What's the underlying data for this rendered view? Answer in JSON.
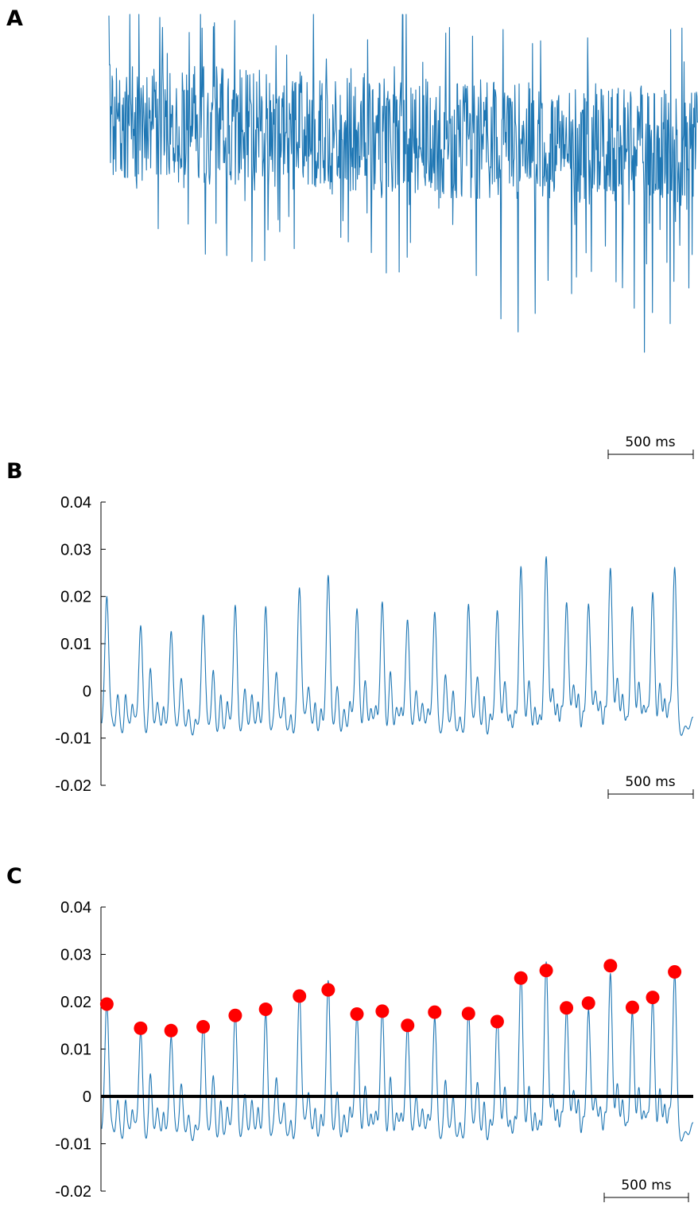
{
  "colors": {
    "trace": "#1f77b4",
    "peak_marker": "#ff0000",
    "zero_line": "#000000"
  },
  "chart_data": [
    {
      "type": "line",
      "panel_label": "A",
      "title": "",
      "xlabel": "",
      "ylabel": "",
      "x_unit": "ms",
      "duration_ms": 3500,
      "yaxis_visible": false,
      "scale_bar": {
        "length_ms": 500,
        "label": "500 ms"
      },
      "description_series": "raw noisy oscillatory signal, unscaled"
    },
    {
      "type": "line",
      "panel_label": "B",
      "title": "",
      "xlabel": "",
      "ylabel": "",
      "x_unit": "ms",
      "duration_ms": 3500,
      "ylim": [
        -0.02,
        0.04
      ],
      "yticks": [
        -0.02,
        -0.01,
        0,
        0.01,
        0.02,
        0.03,
        0.04
      ],
      "ytick_labels": [
        "-0.02",
        "-0.01",
        "0",
        "0.01",
        "0.02",
        "0.03",
        "0.04"
      ],
      "scale_bar": {
        "length_ms": 500,
        "label": "500 ms"
      },
      "peak_times_ms": [
        30,
        230,
        410,
        600,
        790,
        970,
        1170,
        1340,
        1510,
        1660,
        1810,
        1970,
        2170,
        2340,
        2480,
        2630,
        2750,
        2880,
        3010,
        3140,
        3260,
        3390
      ],
      "peak_values": [
        0.0195,
        0.0144,
        0.0139,
        0.0147,
        0.0171,
        0.0184,
        0.0212,
        0.0225,
        0.0174,
        0.018,
        0.015,
        0.0178,
        0.0175,
        0.0158,
        0.025,
        0.0266,
        0.0187,
        0.0197,
        0.0276,
        0.0188,
        0.0209,
        0.0263
      ]
    },
    {
      "type": "line",
      "panel_label": "C",
      "title": "",
      "xlabel": "",
      "ylabel": "",
      "x_unit": "ms",
      "duration_ms": 3500,
      "ylim": [
        -0.02,
        0.04
      ],
      "yticks": [
        -0.02,
        -0.01,
        0,
        0.01,
        0.02,
        0.03,
        0.04
      ],
      "ytick_labels": [
        "-0.02",
        "-0.01",
        "0",
        "0.01",
        "0.02",
        "0.03",
        "0.04"
      ],
      "scale_bar": {
        "length_ms": 500,
        "label": "500 ms"
      },
      "threshold_line": 0,
      "detected_peaks": {
        "times_ms": [
          30,
          230,
          410,
          600,
          790,
          970,
          1170,
          1340,
          1510,
          1660,
          1810,
          1970,
          2170,
          2340,
          2480,
          2630,
          2750,
          2880,
          3010,
          3140,
          3260,
          3390
        ],
        "values": [
          0.0195,
          0.0144,
          0.0139,
          0.0147,
          0.0171,
          0.0184,
          0.0212,
          0.0225,
          0.0174,
          0.018,
          0.015,
          0.0178,
          0.0175,
          0.0158,
          0.025,
          0.0266,
          0.0187,
          0.0197,
          0.0276,
          0.0188,
          0.0209,
          0.0263
        ]
      }
    }
  ]
}
